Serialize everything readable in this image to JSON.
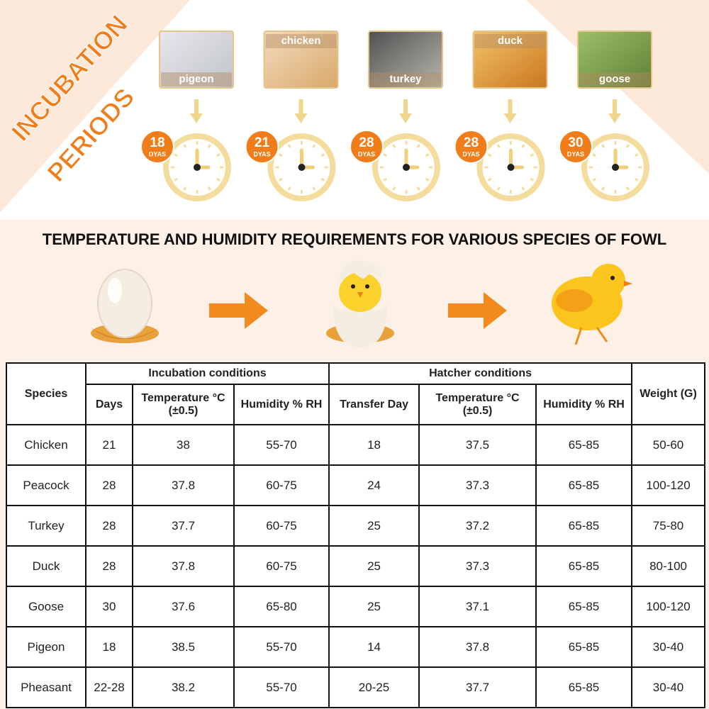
{
  "banner": {
    "title_lines": [
      "INCUBATION",
      "PERIODS"
    ]
  },
  "periods": {
    "unit": "DYAS",
    "items": [
      {
        "species": "pigeon",
        "days": "18"
      },
      {
        "species": "chicken",
        "days": "21"
      },
      {
        "species": "turkey",
        "days": "28"
      },
      {
        "species": "duck",
        "days": "28"
      },
      {
        "species": "goose",
        "days": "30"
      }
    ]
  },
  "heading": "TEMPERATURE AND HUMIDITY REQUIREMENTS FOR VARIOUS SPECIES OF FOWL",
  "table": {
    "species_header": "Species",
    "weight_header": "Weight (G)",
    "groups": [
      "Incubation conditions",
      "Hatcher conditions"
    ],
    "columns": [
      {
        "label": "Days"
      },
      {
        "label": "Temperature °C",
        "note": "(±0.5)"
      },
      {
        "label": "Humidity % RH"
      },
      {
        "label": "Transfer Day"
      },
      {
        "label": "Temperature °C",
        "note": "(±0.5)"
      },
      {
        "label": "Humidity % RH"
      }
    ],
    "rows": [
      [
        "Chicken",
        "21",
        "38",
        "55-70",
        "18",
        "37.5",
        "65-85",
        "50-60"
      ],
      [
        "Peacock",
        "28",
        "37.8",
        "60-75",
        "24",
        "37.3",
        "65-85",
        "100-120"
      ],
      [
        "Turkey",
        "28",
        "37.7",
        "60-75",
        "25",
        "37.2",
        "65-85",
        "75-80"
      ],
      [
        "Duck",
        "28",
        "37.8",
        "60-75",
        "25",
        "37.3",
        "65-85",
        "80-100"
      ],
      [
        "Goose",
        "30",
        "37.6",
        "65-80",
        "25",
        "37.1",
        "65-85",
        "100-120"
      ],
      [
        "Pigeon",
        "18",
        "38.5",
        "55-70",
        "14",
        "37.8",
        "65-85",
        "30-40"
      ],
      [
        "Pheasant",
        "22-28",
        "38.2",
        "55-70",
        "20-25",
        "37.7",
        "65-85",
        "30-40"
      ]
    ]
  }
}
